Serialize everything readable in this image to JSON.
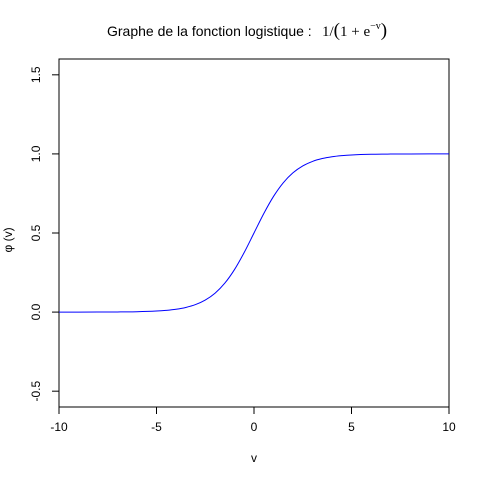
{
  "chart_data": {
    "type": "line",
    "title": "Graphe de la fonction logistique :",
    "title_formula": {
      "numerator": "1",
      "slash": "/",
      "open": "(",
      "base": "1 + e",
      "exponent": "−v",
      "close": ")"
    },
    "xlabel": "v",
    "ylabel": "φ (v)",
    "xlim": [
      -10,
      10
    ],
    "ylim": [
      -0.6,
      1.6
    ],
    "x_ticks": [
      -10,
      -5,
      0,
      5,
      10
    ],
    "x_tick_labels": [
      "-10",
      "-5",
      "0",
      "5",
      "10"
    ],
    "y_ticks": [
      -0.5,
      0.0,
      0.5,
      1.0,
      1.5
    ],
    "y_tick_labels": [
      "-0.5",
      "0.0",
      "0.5",
      "1.0",
      "1.5"
    ],
    "grid": false,
    "legend": "none",
    "series": [
      {
        "color": "#0000ff",
        "x": [
          -10,
          -9,
          -8,
          -7,
          -6,
          -5,
          -4.5,
          -4,
          -3.5,
          -3,
          -2.5,
          -2,
          -1.5,
          -1,
          -0.5,
          0,
          0.5,
          1,
          1.5,
          2,
          2.5,
          3,
          3.5,
          4,
          4.5,
          5,
          6,
          7,
          8,
          9,
          10
        ],
        "y": [
          0.0,
          0.0001,
          0.0003,
          0.0009,
          0.0025,
          0.0067,
          0.011,
          0.018,
          0.0293,
          0.0474,
          0.0759,
          0.1192,
          0.1824,
          0.2689,
          0.3775,
          0.5,
          0.6225,
          0.7311,
          0.8176,
          0.8808,
          0.9241,
          0.9526,
          0.9707,
          0.982,
          0.989,
          0.9933,
          0.9975,
          0.9991,
          0.9997,
          0.9999,
          1.0
        ]
      }
    ]
  }
}
